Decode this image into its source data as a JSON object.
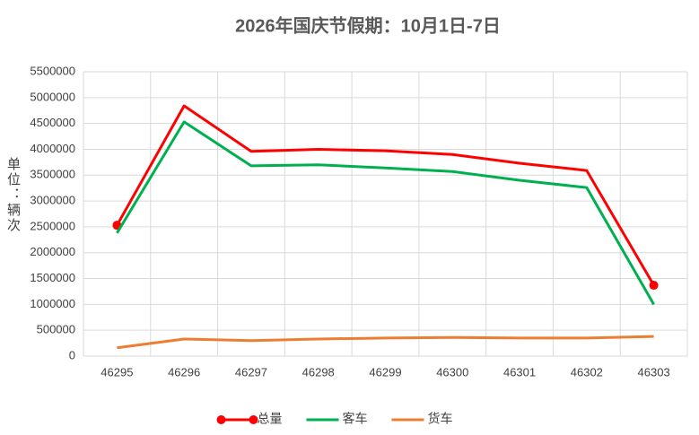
{
  "chart_data": {
    "type": "line",
    "title": "2026年国庆节假期：10月1日-7日",
    "y_label": "单位：辆次",
    "categories": [
      "46295",
      "46296",
      "46297",
      "46298",
      "46299",
      "46300",
      "46301",
      "46302",
      "46303"
    ],
    "series": [
      {
        "name": "总量",
        "color": "#ff0000",
        "markers": "ends",
        "values": [
          2530000,
          4840000,
          3960000,
          4000000,
          3970000,
          3900000,
          3730000,
          3590000,
          1370000
        ]
      },
      {
        "name": "客车",
        "color": "#00b050",
        "values": [
          2380000,
          4530000,
          3680000,
          3700000,
          3640000,
          3570000,
          3400000,
          3260000,
          1000000
        ]
      },
      {
        "name": "货车",
        "color": "#ed7d31",
        "values": [
          160000,
          330000,
          300000,
          330000,
          350000,
          360000,
          350000,
          350000,
          380000
        ]
      }
    ],
    "ylim": [
      0,
      5500000
    ],
    "yticks": [
      0,
      500000,
      1000000,
      1500000,
      2000000,
      2500000,
      3000000,
      3500000,
      4000000,
      4500000,
      5000000,
      5500000
    ],
    "grid": true,
    "legend": "bottom"
  }
}
